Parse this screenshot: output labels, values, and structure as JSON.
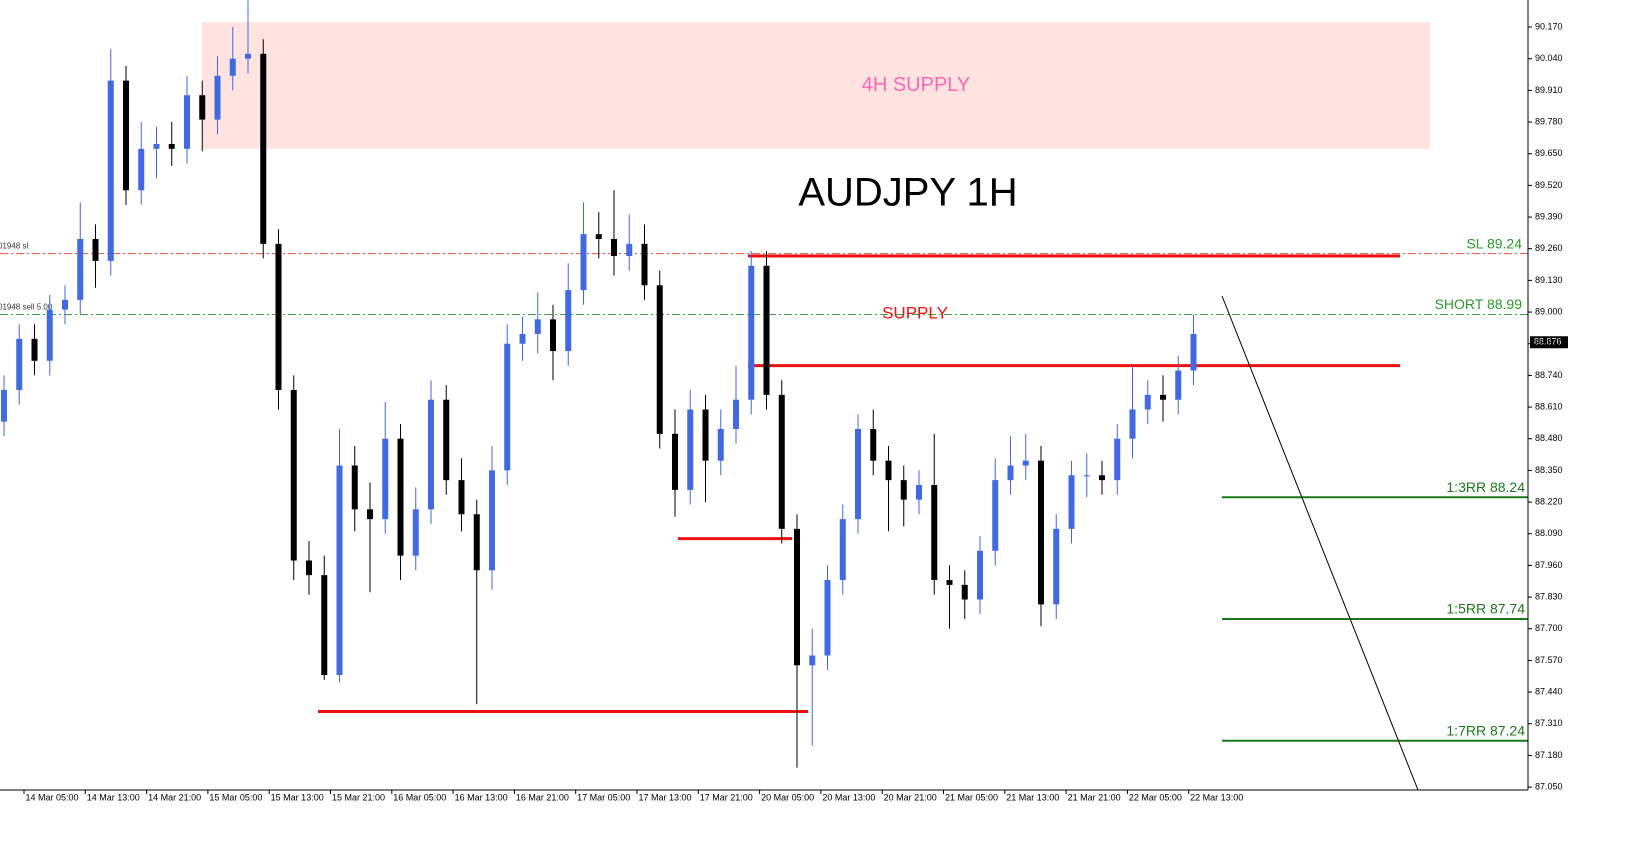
{
  "chart_data": {
    "type": "candlestick",
    "title": "AUDJPY 1H",
    "up_color": "#4169e1",
    "down_color": "#000000",
    "ylim": [
      87.038,
      90.281
    ],
    "yticks": [
      {
        "value": 87.05,
        "label": "87.050"
      },
      {
        "value": 87.18,
        "label": "87.180"
      },
      {
        "value": 87.31,
        "label": "87.310"
      },
      {
        "value": 87.44,
        "label": "87.440"
      },
      {
        "value": 87.57,
        "label": "87.570"
      },
      {
        "value": 87.7,
        "label": "87.700"
      },
      {
        "value": 87.83,
        "label": "87.830"
      },
      {
        "value": 87.96,
        "label": "87.960"
      },
      {
        "value": 88.09,
        "label": "88.090"
      },
      {
        "value": 88.22,
        "label": "88.220"
      },
      {
        "value": 88.35,
        "label": "88.350"
      },
      {
        "value": 88.48,
        "label": "88.480"
      },
      {
        "value": 88.61,
        "label": "88.610"
      },
      {
        "value": 88.74,
        "label": "88.740"
      },
      {
        "value": 88.87,
        "label": "88.870"
      },
      {
        "value": 89.0,
        "label": "89.000"
      },
      {
        "value": 89.13,
        "label": "89.130"
      },
      {
        "value": 89.26,
        "label": "89.260"
      },
      {
        "value": 89.39,
        "label": "89.390"
      },
      {
        "value": 89.52,
        "label": "89.520"
      },
      {
        "value": 89.65,
        "label": "89.650"
      },
      {
        "value": 89.78,
        "label": "89.780"
      },
      {
        "value": 89.91,
        "label": "89.910"
      },
      {
        "value": 90.04,
        "label": "90.040"
      },
      {
        "value": 90.17,
        "label": "90.170"
      }
    ],
    "x_labels": [
      "14 Mar 05:00",
      "14 Mar 13:00",
      "14 Mar 21:00",
      "15 Mar 05:00",
      "15 Mar 13:00",
      "15 Mar 21:00",
      "16 Mar 05:00",
      "16 Mar 13:00",
      "16 Mar 21:00",
      "17 Mar 05:00",
      "17 Mar 13:00",
      "17 Mar 21:00",
      "20 Mar 05:00",
      "20 Mar 13:00",
      "20 Mar 21:00",
      "21 Mar 05:00",
      "21 Mar 13:00",
      "21 Mar 21:00",
      "22 Mar 05:00",
      "22 Mar 13:00"
    ],
    "open": [
      88.55,
      88.68,
      88.89,
      88.8,
      89.01,
      89.05,
      89.3,
      89.21,
      89.95,
      89.5,
      89.67,
      89.69,
      89.67,
      89.89,
      89.79,
      89.97,
      90.04,
      90.06,
      89.28,
      88.68,
      87.98,
      87.92,
      87.51,
      88.37,
      88.19,
      88.15,
      88.48,
      88.0,
      88.19,
      88.64,
      88.31,
      88.17,
      87.94,
      88.35,
      88.87,
      88.91,
      88.97,
      88.84,
      89.09,
      89.32,
      89.3,
      89.23,
      89.28,
      89.11,
      88.5,
      88.27,
      88.6,
      88.39,
      88.52,
      88.64,
      89.19,
      88.66,
      88.11,
      87.55,
      87.59,
      87.9,
      88.15,
      88.52,
      88.39,
      88.31,
      88.23,
      88.29,
      87.9,
      87.88,
      87.82,
      88.02,
      88.31,
      88.37,
      88.39,
      87.8,
      88.11,
      88.33,
      88.33,
      88.31,
      88.48,
      88.6,
      88.66,
      88.64,
      88.76
    ],
    "high": [
      88.74,
      88.95,
      88.95,
      89.07,
      89.11,
      89.45,
      89.36,
      90.08,
      90.01,
      89.78,
      89.76,
      89.78,
      89.97,
      89.95,
      90.05,
      90.17,
      90.28,
      90.12,
      89.34,
      88.74,
      88.06,
      88.0,
      88.52,
      88.45,
      88.3,
      88.63,
      88.54,
      88.28,
      88.72,
      88.7,
      88.4,
      88.23,
      88.45,
      88.95,
      88.98,
      89.08,
      89.03,
      89.2,
      89.45,
      89.41,
      89.5,
      89.4,
      89.36,
      89.17,
      88.6,
      88.68,
      88.66,
      88.6,
      88.78,
      89.25,
      89.25,
      88.72,
      88.17,
      87.7,
      87.96,
      88.21,
      88.58,
      88.6,
      88.45,
      88.37,
      88.35,
      88.5,
      87.96,
      87.94,
      88.08,
      88.4,
      88.49,
      88.5,
      88.45,
      88.17,
      88.39,
      88.42,
      88.39,
      88.54,
      88.78,
      88.72,
      88.74,
      88.82,
      88.99
    ],
    "low": [
      88.49,
      88.62,
      88.74,
      88.74,
      88.95,
      88.99,
      89.1,
      89.15,
      89.44,
      89.44,
      89.55,
      89.6,
      89.61,
      89.66,
      89.73,
      89.91,
      89.98,
      89.22,
      88.6,
      87.9,
      87.84,
      87.49,
      87.48,
      88.1,
      87.85,
      88.09,
      87.9,
      87.94,
      88.13,
      88.25,
      88.1,
      87.39,
      87.86,
      88.29,
      88.8,
      88.83,
      88.72,
      88.78,
      89.03,
      89.22,
      89.15,
      89.17,
      89.05,
      88.44,
      88.16,
      88.21,
      88.22,
      88.33,
      88.46,
      88.58,
      88.6,
      88.05,
      87.13,
      87.22,
      87.53,
      87.84,
      88.09,
      88.33,
      88.1,
      88.12,
      88.17,
      87.84,
      87.7,
      87.74,
      87.76,
      87.96,
      88.25,
      88.31,
      87.71,
      87.74,
      88.05,
      88.24,
      88.25,
      88.25,
      88.4,
      88.54,
      88.55,
      88.58,
      88.7
    ],
    "close": [
      88.68,
      88.89,
      88.8,
      89.01,
      89.05,
      89.3,
      89.21,
      89.95,
      89.5,
      89.67,
      89.69,
      89.67,
      89.89,
      89.79,
      89.97,
      90.04,
      90.06,
      89.28,
      88.68,
      87.98,
      87.92,
      87.51,
      88.37,
      88.19,
      88.15,
      88.48,
      88.0,
      88.19,
      88.64,
      88.31,
      88.17,
      87.94,
      88.35,
      88.87,
      88.91,
      88.97,
      88.84,
      89.09,
      89.32,
      89.3,
      89.23,
      89.28,
      89.11,
      88.5,
      88.27,
      88.6,
      88.39,
      88.52,
      88.64,
      89.19,
      88.66,
      88.11,
      87.55,
      87.59,
      87.9,
      88.15,
      88.52,
      88.39,
      88.31,
      88.23,
      88.29,
      87.9,
      87.88,
      87.82,
      88.02,
      88.31,
      88.37,
      88.39,
      87.8,
      88.11,
      88.33,
      88.33,
      88.31,
      88.48,
      88.6,
      88.66,
      88.64,
      88.76,
      88.91
    ],
    "current_price": {
      "value": 88.876,
      "label": "88.876"
    },
    "supply_zone": {
      "label": "4H SUPPLY",
      "top": 90.19,
      "bottom": 89.67,
      "color": "#ffe3e1",
      "text_color": "#ff66b3"
    },
    "dash_levels": [
      {
        "label": "SL 89.24",
        "value": 89.24,
        "color": "#e8533a",
        "left_label": "01948 sl"
      },
      {
        "label": "SHORT 88.99",
        "value": 88.99,
        "color": "#3aa83a",
        "left_label": "01948 sell 5.00"
      }
    ],
    "target_levels": [
      {
        "label": "1:3RR 88.24",
        "value": 88.24
      },
      {
        "label": "1:5RR 87.74",
        "value": 87.74
      },
      {
        "label": "1:7RR 87.24",
        "value": 87.24
      }
    ],
    "target_color": "#1a7a1a",
    "structure_levels": [
      89.23,
      88.78,
      88.07,
      87.36
    ],
    "structure_color": "#ee1111",
    "supply_label": "SUPPLY"
  }
}
